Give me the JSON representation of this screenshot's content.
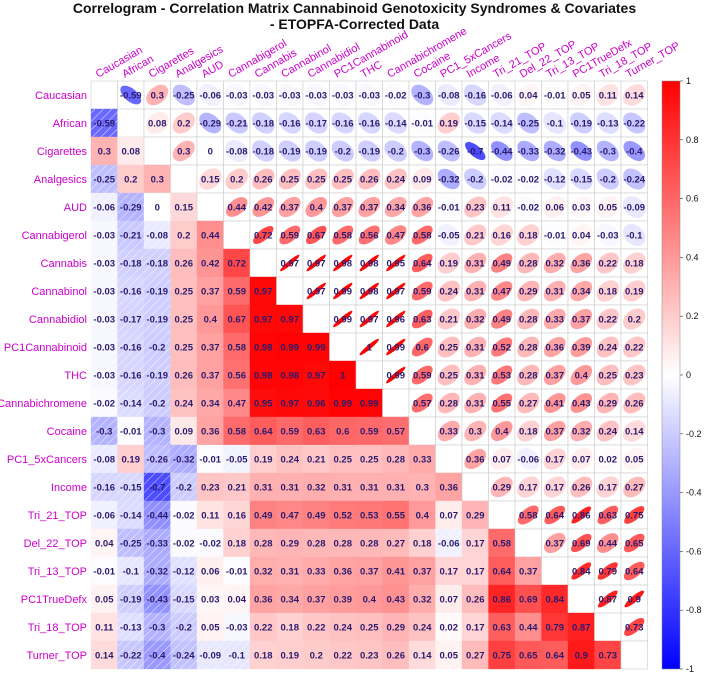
{
  "chart_data": {
    "type": "heatmap",
    "title": "Correlogram - Correlation Matrix Cannabinoid Genotoxicity Syndromes & Covariates",
    "subtitle": "- ETOPFA-Corrected Data",
    "variables": [
      "Caucasian",
      "African",
      "Cigarettes",
      "Analgesics",
      "AUD",
      "Cannabigerol",
      "Cannabis",
      "Cannabinol",
      "Cannabidiol",
      "PC1Cannabinoid",
      "THC",
      "Cannabichromene",
      "Cocaine",
      "PC1_5xCancers",
      "Income",
      "Tri_21_TOP",
      "Del_22_TOP",
      "Tri_13_TOP",
      "PC1TrueDefx",
      "Tri_18_TOP",
      "Turner_TOP"
    ],
    "lower_triangle": [
      [],
      [
        -0.59
      ],
      [
        0.3,
        0.08
      ],
      [
        -0.25,
        0.2,
        0.3
      ],
      [
        -0.06,
        -0.29,
        0,
        0.15
      ],
      [
        -0.03,
        -0.21,
        -0.08,
        0.2,
        0.44
      ],
      [
        -0.03,
        -0.18,
        -0.18,
        0.26,
        0.42,
        0.72
      ],
      [
        -0.03,
        -0.16,
        -0.19,
        0.25,
        0.37,
        0.59,
        0.97
      ],
      [
        -0.03,
        -0.17,
        -0.19,
        0.25,
        0.4,
        0.67,
        0.97,
        0.97
      ],
      [
        -0.03,
        -0.16,
        -0.2,
        0.25,
        0.37,
        0.58,
        0.98,
        0.99,
        0.99
      ],
      [
        -0.03,
        -0.16,
        -0.19,
        0.26,
        0.37,
        0.56,
        0.98,
        0.98,
        0.97,
        1
      ],
      [
        -0.02,
        -0.14,
        -0.2,
        0.24,
        0.34,
        0.47,
        0.95,
        0.97,
        0.96,
        0.99,
        0.99
      ],
      [
        -0.3,
        -0.01,
        -0.3,
        0.09,
        0.36,
        0.58,
        0.64,
        0.59,
        0.63,
        0.6,
        0.59,
        0.57
      ],
      [
        -0.08,
        0.19,
        -0.26,
        -0.32,
        -0.01,
        -0.05,
        0.19,
        0.24,
        0.21,
        0.25,
        0.25,
        0.28,
        0.33
      ],
      [
        -0.16,
        -0.15,
        -0.7,
        -0.2,
        0.23,
        0.21,
        0.31,
        0.31,
        0.32,
        0.31,
        0.31,
        0.31,
        0.3,
        0.36
      ],
      [
        -0.06,
        -0.14,
        -0.44,
        -0.02,
        0.11,
        0.16,
        0.49,
        0.47,
        0.49,
        0.52,
        0.53,
        0.55,
        0.4,
        0.07,
        0.29
      ],
      [
        0.04,
        -0.25,
        -0.33,
        -0.02,
        -0.02,
        0.18,
        0.28,
        0.29,
        0.28,
        0.28,
        0.28,
        0.27,
        0.18,
        -0.06,
        0.17,
        0.58
      ],
      [
        -0.01,
        -0.1,
        -0.32,
        -0.12,
        0.06,
        -0.01,
        0.32,
        0.31,
        0.33,
        0.36,
        0.37,
        0.41,
        0.37,
        0.17,
        0.17,
        0.64,
        0.37
      ],
      [
        0.05,
        -0.19,
        -0.43,
        -0.15,
        0.03,
        0.04,
        0.36,
        0.34,
        0.37,
        0.39,
        0.4,
        0.43,
        0.32,
        0.07,
        0.26,
        0.86,
        0.69,
        0.84
      ],
      [
        0.11,
        -0.13,
        -0.3,
        -0.2,
        0.05,
        -0.03,
        0.22,
        0.18,
        0.22,
        0.24,
        0.25,
        0.29,
        0.24,
        0.02,
        0.17,
        0.63,
        0.44,
        0.79,
        0.87
      ],
      [
        0.14,
        -0.22,
        -0.4,
        -0.24,
        -0.09,
        -0.1,
        0.18,
        0.19,
        0.2,
        0.22,
        0.23,
        0.26,
        0.14,
        0.05,
        0.27,
        0.75,
        0.65,
        0.64,
        0.9,
        0.73
      ]
    ],
    "lower_method": "shade",
    "upper_method": "ellipse",
    "color_scale": {
      "low": "#0000ff",
      "mid": "#ffffff",
      "high": "#ff0000",
      "range": [
        -1,
        1
      ]
    },
    "colorbar_ticks": [
      "1",
      "0.8",
      "0.6",
      "0.4",
      "0.2",
      "0",
      "-0.2",
      "-0.4",
      "-0.6",
      "-0.8",
      "-1"
    ],
    "legend": "right"
  }
}
